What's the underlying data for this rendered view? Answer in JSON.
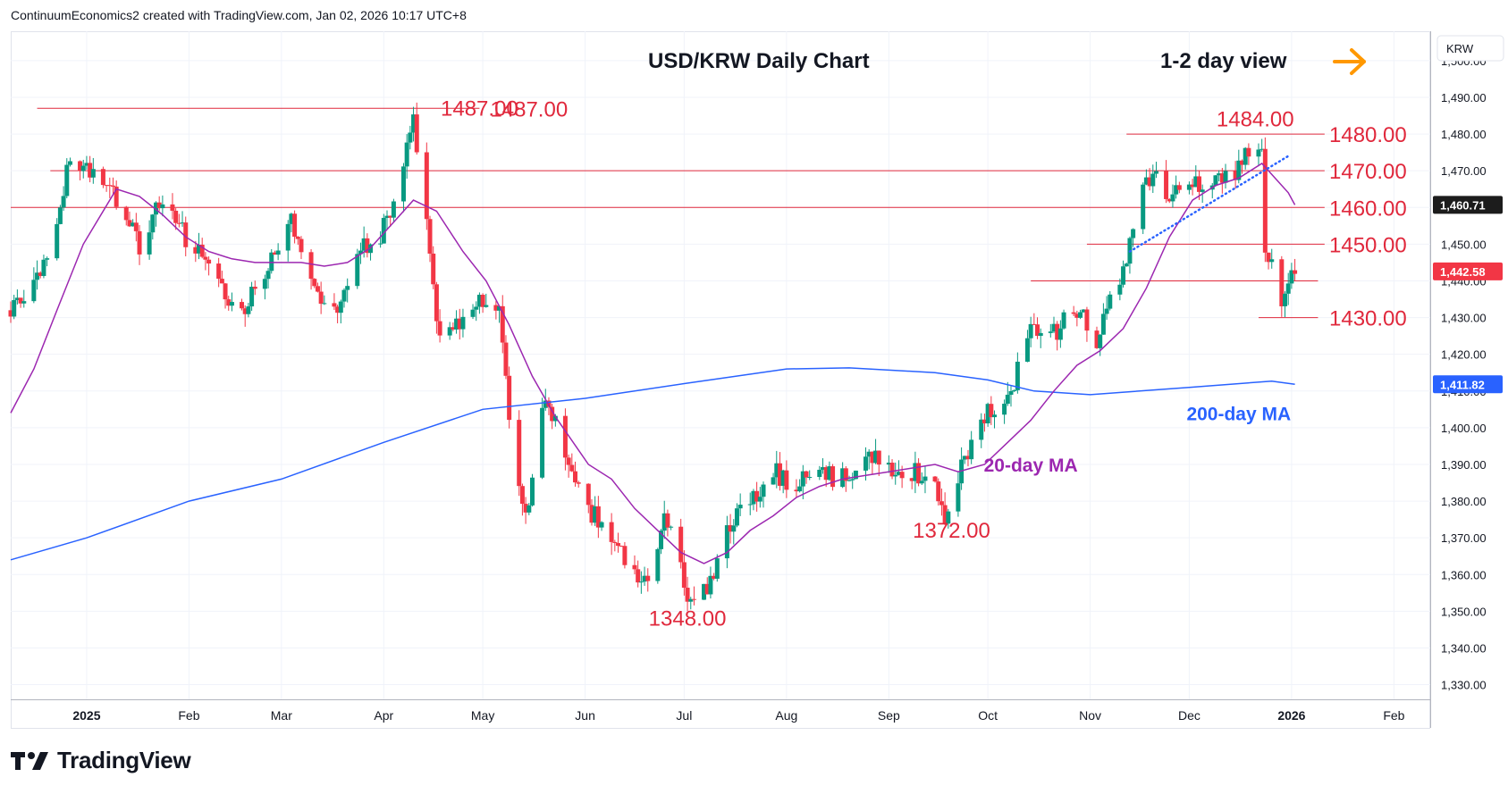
{
  "header": {
    "attribution": "ContinuumEconomics2 created with TradingView.com, Jan 02, 2026 10:17 UTC+8"
  },
  "brand": {
    "name": "TradingView",
    "logo_icon": "tradingview-logo-icon"
  },
  "chart_data": {
    "type": "candlestick",
    "title": "USD/KRW Daily Chart",
    "subtitle": "1-2 day view",
    "currency_label": "KRW",
    "y_axis": {
      "range": [
        1326,
        1508
      ],
      "ticks": [
        "1,330.00",
        "1,340.00",
        "1,350.00",
        "1,360.00",
        "1,370.00",
        "1,380.00",
        "1,390.00",
        "1,400.00",
        "1,410.00",
        "1,420.00",
        "1,430.00",
        "1,440.00",
        "1,450.00",
        "1,460.00",
        "1,470.00",
        "1,480.00",
        "1,490.00",
        "1,500.00"
      ],
      "tick_values": [
        1330,
        1340,
        1350,
        1360,
        1370,
        1380,
        1390,
        1400,
        1410,
        1420,
        1430,
        1440,
        1450,
        1460,
        1470,
        1480,
        1490,
        1500
      ]
    },
    "x_axis": {
      "range": [
        "2024-12-09",
        "2026-02-12"
      ],
      "labels": [
        {
          "label": "2025",
          "date": "2025-01-01",
          "bold": true
        },
        {
          "label": "Feb",
          "date": "2025-02-01"
        },
        {
          "label": "Mar",
          "date": "2025-03-01"
        },
        {
          "label": "Apr",
          "date": "2025-04-01"
        },
        {
          "label": "May",
          "date": "2025-05-01"
        },
        {
          "label": "Jun",
          "date": "2025-06-01"
        },
        {
          "label": "Jul",
          "date": "2025-07-01"
        },
        {
          "label": "Aug",
          "date": "2025-08-01"
        },
        {
          "label": "Sep",
          "date": "2025-09-01"
        },
        {
          "label": "Oct",
          "date": "2025-10-01"
        },
        {
          "label": "Nov",
          "date": "2025-11-01"
        },
        {
          "label": "Dec",
          "date": "2025-12-01"
        },
        {
          "label": "2026",
          "date": "2026-01-01",
          "bold": true
        },
        {
          "label": "Feb",
          "date": "2026-02-01"
        }
      ]
    },
    "grid": true,
    "price_points": [
      [
        "2024-12-09",
        1432
      ],
      [
        "2024-12-16",
        1438
      ],
      [
        "2024-12-23",
        1453
      ],
      [
        "2024-12-27",
        1474
      ],
      [
        "2025-01-03",
        1470
      ],
      [
        "2025-01-10",
        1462
      ],
      [
        "2025-01-17",
        1450
      ],
      [
        "2025-01-24",
        1462
      ],
      [
        "2025-01-31",
        1452
      ],
      [
        "2025-02-07",
        1445
      ],
      [
        "2025-02-12",
        1436
      ],
      [
        "2025-02-17",
        1432
      ],
      [
        "2025-02-24",
        1440
      ],
      [
        "2025-03-03",
        1458
      ],
      [
        "2025-03-07",
        1448
      ],
      [
        "2025-03-12",
        1436
      ],
      [
        "2025-03-18",
        1434
      ],
      [
        "2025-03-24",
        1448
      ],
      [
        "2025-03-31",
        1452
      ],
      [
        "2025-04-03",
        1460
      ],
      [
        "2025-04-08",
        1476
      ],
      [
        "2025-04-10",
        1484
      ],
      [
        "2025-04-15",
        1448
      ],
      [
        "2025-04-18",
        1424
      ],
      [
        "2025-04-25",
        1428
      ],
      [
        "2025-05-02",
        1436
      ],
      [
        "2025-05-06",
        1432
      ],
      [
        "2025-05-10",
        1396
      ],
      [
        "2025-05-14",
        1376
      ],
      [
        "2025-05-20",
        1408
      ],
      [
        "2025-05-27",
        1390
      ],
      [
        "2025-06-02",
        1378
      ],
      [
        "2025-06-09",
        1370
      ],
      [
        "2025-06-16",
        1362
      ],
      [
        "2025-06-20",
        1356
      ],
      [
        "2025-06-25",
        1378
      ],
      [
        "2025-06-30",
        1362
      ],
      [
        "2025-07-03",
        1352
      ],
      [
        "2025-07-08",
        1356
      ],
      [
        "2025-07-14",
        1372
      ],
      [
        "2025-07-21",
        1380
      ],
      [
        "2025-07-28",
        1388
      ],
      [
        "2025-08-04",
        1384
      ],
      [
        "2025-08-11",
        1388
      ],
      [
        "2025-08-18",
        1386
      ],
      [
        "2025-08-25",
        1392
      ],
      [
        "2025-09-01",
        1390
      ],
      [
        "2025-09-08",
        1388
      ],
      [
        "2025-09-15",
        1384
      ],
      [
        "2025-09-18",
        1376
      ],
      [
        "2025-09-24",
        1392
      ],
      [
        "2025-09-30",
        1404
      ],
      [
        "2025-10-07",
        1408
      ],
      [
        "2025-10-14",
        1426
      ],
      [
        "2025-10-20",
        1424
      ],
      [
        "2025-10-27",
        1434
      ],
      [
        "2025-11-03",
        1424
      ],
      [
        "2025-11-07",
        1434
      ],
      [
        "2025-11-12",
        1446
      ],
      [
        "2025-11-17",
        1464
      ],
      [
        "2025-11-21",
        1470
      ],
      [
        "2025-11-26",
        1462
      ],
      [
        "2025-12-01",
        1468
      ],
      [
        "2025-12-08",
        1466
      ],
      [
        "2025-12-15",
        1470
      ],
      [
        "2025-12-19",
        1475
      ],
      [
        "2025-12-23",
        1478
      ],
      [
        "2025-12-24",
        1448
      ],
      [
        "2025-12-26",
        1444
      ],
      [
        "2025-12-29",
        1432
      ],
      [
        "2025-12-31",
        1438
      ],
      [
        "2026-01-02",
        1442.58
      ]
    ],
    "ma_20": [
      [
        "2024-12-09",
        1404
      ],
      [
        "2024-12-16",
        1416
      ],
      [
        "2024-12-23",
        1432
      ],
      [
        "2024-12-31",
        1450
      ],
      [
        "2025-01-10",
        1465
      ],
      [
        "2025-01-17",
        1463
      ],
      [
        "2025-01-24",
        1458
      ],
      [
        "2025-01-31",
        1452
      ],
      [
        "2025-02-07",
        1448
      ],
      [
        "2025-02-14",
        1446
      ],
      [
        "2025-02-21",
        1445
      ],
      [
        "2025-02-28",
        1445
      ],
      [
        "2025-03-07",
        1445
      ],
      [
        "2025-03-14",
        1444
      ],
      [
        "2025-03-21",
        1445
      ],
      [
        "2025-03-28",
        1449
      ],
      [
        "2025-04-04",
        1456
      ],
      [
        "2025-04-10",
        1462
      ],
      [
        "2025-04-17",
        1459
      ],
      [
        "2025-04-25",
        1448
      ],
      [
        "2025-05-02",
        1440
      ],
      [
        "2025-05-09",
        1428
      ],
      [
        "2025-05-16",
        1414
      ],
      [
        "2025-05-23",
        1403
      ],
      [
        "2025-06-02",
        1390
      ],
      [
        "2025-06-09",
        1386
      ],
      [
        "2025-06-16",
        1378
      ],
      [
        "2025-06-23",
        1372
      ],
      [
        "2025-06-30",
        1366
      ],
      [
        "2025-07-07",
        1363
      ],
      [
        "2025-07-14",
        1366
      ],
      [
        "2025-07-21",
        1372
      ],
      [
        "2025-07-28",
        1376
      ],
      [
        "2025-08-04",
        1381
      ],
      [
        "2025-08-11",
        1384
      ],
      [
        "2025-08-18",
        1386
      ],
      [
        "2025-08-25",
        1387
      ],
      [
        "2025-09-01",
        1388
      ],
      [
        "2025-09-08",
        1389
      ],
      [
        "2025-09-15",
        1390
      ],
      [
        "2025-09-22",
        1388
      ],
      [
        "2025-09-30",
        1390
      ],
      [
        "2025-10-07",
        1396
      ],
      [
        "2025-10-14",
        1402
      ],
      [
        "2025-10-21",
        1410
      ],
      [
        "2025-10-28",
        1417
      ],
      [
        "2025-11-04",
        1421
      ],
      [
        "2025-11-11",
        1427
      ],
      [
        "2025-11-18",
        1438
      ],
      [
        "2025-11-25",
        1452
      ],
      [
        "2025-12-02",
        1462
      ],
      [
        "2025-12-09",
        1466
      ],
      [
        "2025-12-16",
        1468
      ],
      [
        "2025-12-23",
        1472
      ],
      [
        "2025-12-26",
        1469
      ],
      [
        "2025-12-31",
        1464
      ],
      [
        "2026-01-02",
        1460.71
      ]
    ],
    "ma_200": [
      [
        "2024-12-09",
        1364
      ],
      [
        "2025-01-01",
        1370
      ],
      [
        "2025-02-01",
        1380
      ],
      [
        "2025-03-01",
        1386
      ],
      [
        "2025-04-01",
        1396
      ],
      [
        "2025-05-01",
        1405
      ],
      [
        "2025-06-01",
        1408
      ],
      [
        "2025-07-01",
        1412
      ],
      [
        "2025-08-01",
        1416
      ],
      [
        "2025-08-20",
        1416.3
      ],
      [
        "2025-09-15",
        1415
      ],
      [
        "2025-10-01",
        1413
      ],
      [
        "2025-10-15",
        1410
      ],
      [
        "2025-11-01",
        1409
      ],
      [
        "2025-12-01",
        1411
      ],
      [
        "2025-12-26",
        1412.7
      ],
      [
        "2026-01-02",
        1411.82
      ]
    ],
    "trendline": {
      "from": [
        "2025-11-13",
        1448
      ],
      "to": [
        "2025-12-31",
        1474
      ]
    },
    "horizontal_levels": [
      {
        "value": 1487,
        "from": "2024-12-17",
        "to": "2025-04-30",
        "label": "1487.00"
      },
      {
        "value": 1480,
        "from": "2025-11-12",
        "to": "2026-01-11",
        "label": "1480.00"
      },
      {
        "value": 1470,
        "from": "2024-12-21",
        "to": "2026-01-11",
        "label": "1470.00"
      },
      {
        "value": 1460,
        "from": "2024-12-09",
        "to": "2026-01-11",
        "label": "1460.00"
      },
      {
        "value": 1450,
        "from": "2025-10-31",
        "to": "2026-01-11",
        "label": "1450.00"
      },
      {
        "value": 1440,
        "from": "2025-10-14",
        "to": "2026-01-09",
        "label": ""
      },
      {
        "value": 1430,
        "from": "2025-12-22",
        "to": "2026-01-09",
        "label": "1430.00"
      }
    ],
    "annotations": [
      {
        "text": "1487.00",
        "date": "2025-04-30",
        "value": 1487
      },
      {
        "text": "1484.00",
        "date": "2025-12-21",
        "value": 1484
      },
      {
        "text": "1348.00",
        "date": "2025-07-02",
        "value": 1348
      },
      {
        "text": "1372.00",
        "date": "2025-09-20",
        "value": 1372
      },
      {
        "text": "20-day MA",
        "date": "2025-10-14",
        "value": 1390
      },
      {
        "text": "200-day MA",
        "date": "2025-12-16",
        "value": 1404
      }
    ],
    "last_values": [
      {
        "label": "1,460.71",
        "value": 1460.71,
        "color": "#1c1c1c",
        "series": "20-day MA"
      },
      {
        "label": "1,442.58",
        "value": 1442.58,
        "color": "#f23645",
        "series": "Price"
      },
      {
        "label": "1,411.82",
        "value": 1411.82,
        "color": "#2962ff",
        "series": "200-day MA"
      }
    ],
    "colors": {
      "up": "#089981",
      "down": "#f23645",
      "ma20": "#9c27b0",
      "ma200": "#2962ff",
      "level_line": "#e0283c",
      "annotation": "#e0283c",
      "arrow": "#ff9800",
      "trendline": "#2962ff"
    },
    "direction_icon": "right-arrow-icon"
  }
}
